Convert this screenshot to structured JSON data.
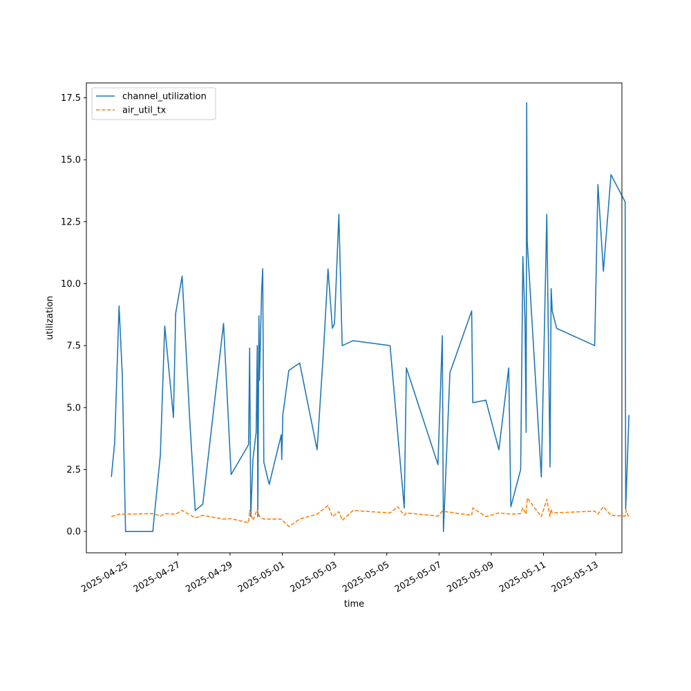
{
  "chart_data": {
    "type": "line",
    "xlabel": "time",
    "ylabel": "utilization",
    "xlim": [
      "2025-04-23T12:00",
      "2025-05-14T00:00"
    ],
    "ylim": [
      -0.86,
      18.1
    ],
    "x_ticks": [
      "2025-04-25",
      "2025-04-27",
      "2025-04-29",
      "2025-05-01",
      "2025-05-03",
      "2025-05-05",
      "2025-05-07",
      "2025-05-09",
      "2025-05-11",
      "2025-05-13"
    ],
    "y_ticks": [
      "0.0",
      "2.5",
      "5.0",
      "7.5",
      "10.0",
      "12.5",
      "15.0",
      "17.5"
    ],
    "y_tick_values": [
      0,
      2.5,
      5,
      7.5,
      10,
      12.5,
      15,
      17.5
    ],
    "grid": false,
    "legend_position": "upper-left",
    "series": [
      {
        "name": "channel_utilization",
        "color": "#1f77b4",
        "style": "solid",
        "points": [
          [
            "2025-04-24T11:00",
            2.2
          ],
          [
            "2025-04-24T14:00",
            3.6
          ],
          [
            "2025-04-24T18:00",
            9.1
          ],
          [
            "2025-04-24T21:00",
            6.3
          ],
          [
            "2025-04-25T00:00",
            0.0
          ],
          [
            "2025-04-26T01:00",
            0.0
          ],
          [
            "2025-04-26T08:00",
            3.1
          ],
          [
            "2025-04-26T12:00",
            8.3
          ],
          [
            "2025-04-26T20:00",
            4.6
          ],
          [
            "2025-04-26T22:00",
            8.8
          ],
          [
            "2025-04-27T04:00",
            10.3
          ],
          [
            "2025-04-27T11:00",
            4.5
          ],
          [
            "2025-04-27T16:00",
            0.85
          ],
          [
            "2025-04-27T23:00",
            1.1
          ],
          [
            "2025-04-28T18:00",
            8.4
          ],
          [
            "2025-04-29T01:00",
            2.3
          ],
          [
            "2025-04-29T17:00",
            3.5
          ],
          [
            "2025-04-29T18:00",
            7.4
          ],
          [
            "2025-04-29T19:00",
            0.6
          ],
          [
            "2025-04-29T21:00",
            2.9
          ],
          [
            "2025-04-30T00:00",
            4.0
          ],
          [
            "2025-04-30T01:00",
            7.5
          ],
          [
            "2025-04-30T01:30",
            0.6
          ],
          [
            "2025-04-30T02:30",
            8.7
          ],
          [
            "2025-04-30T03:00",
            6.1
          ],
          [
            "2025-04-30T05:00",
            9.7
          ],
          [
            "2025-04-30T06:00",
            10.6
          ],
          [
            "2025-04-30T07:00",
            2.8
          ],
          [
            "2025-04-30T12:00",
            1.9
          ],
          [
            "2025-04-30T23:00",
            3.9
          ],
          [
            "2025-04-30T23:30",
            2.9
          ],
          [
            "2025-05-01T00:30",
            4.7
          ],
          [
            "2025-05-01T06:00",
            6.5
          ],
          [
            "2025-05-01T16:00",
            6.8
          ],
          [
            "2025-05-02T08:00",
            3.3
          ],
          [
            "2025-05-02T14:00",
            7.4
          ],
          [
            "2025-05-02T18:00",
            10.6
          ],
          [
            "2025-05-02T22:00",
            8.2
          ],
          [
            "2025-05-03T00:00",
            8.4
          ],
          [
            "2025-05-03T04:00",
            12.8
          ],
          [
            "2025-05-03T07:00",
            7.5
          ],
          [
            "2025-05-03T17:00",
            7.7
          ],
          [
            "2025-05-05T03:00",
            7.5
          ],
          [
            "2025-05-05T16:00",
            0.95
          ],
          [
            "2025-05-05T18:00",
            6.6
          ],
          [
            "2025-05-06T23:00",
            2.7
          ],
          [
            "2025-05-07T03:00",
            7.9
          ],
          [
            "2025-05-07T04:00",
            0.0
          ],
          [
            "2025-05-07T10:00",
            6.4
          ],
          [
            "2025-05-08T06:00",
            8.9
          ],
          [
            "2025-05-08T07:00",
            5.2
          ],
          [
            "2025-05-08T19:00",
            5.3
          ],
          [
            "2025-05-09T07:00",
            3.3
          ],
          [
            "2025-05-09T16:00",
            6.6
          ],
          [
            "2025-05-09T18:00",
            1.0
          ],
          [
            "2025-05-10T03:00",
            2.5
          ],
          [
            "2025-05-10T05:00",
            11.1
          ],
          [
            "2025-05-10T07:00",
            8.5
          ],
          [
            "2025-05-10T08:00",
            4.0
          ],
          [
            "2025-05-10T08:30",
            17.3
          ],
          [
            "2025-05-10T09:00",
            11.7
          ],
          [
            "2025-05-10T22:00",
            2.2
          ],
          [
            "2025-05-11T03:00",
            12.8
          ],
          [
            "2025-05-11T06:00",
            2.6
          ],
          [
            "2025-05-11T07:00",
            9.8
          ],
          [
            "2025-05-11T08:00",
            8.9
          ],
          [
            "2025-05-11T12:00",
            8.2
          ],
          [
            "2025-05-12T23:00",
            7.5
          ],
          [
            "2025-05-13T02:00",
            14.0
          ],
          [
            "2025-05-13T07:00",
            10.5
          ],
          [
            "2025-05-13T14:00",
            14.4
          ],
          [
            "2025-05-14T03:00",
            13.3
          ],
          [
            "2025-05-14T03:30",
            0.9
          ],
          [
            "2025-05-14T06:30",
            4.7
          ]
        ]
      },
      {
        "name": "air_util_tx",
        "color": "#ff7f0e",
        "style": "dashed",
        "points": [
          [
            "2025-04-24T11:00",
            0.6
          ],
          [
            "2025-04-24T18:00",
            0.7
          ],
          [
            "2025-04-25T00:00",
            0.7
          ],
          [
            "2025-04-26T01:00",
            0.72
          ],
          [
            "2025-04-26T08:00",
            0.62
          ],
          [
            "2025-04-26T12:00",
            0.72
          ],
          [
            "2025-04-26T22:00",
            0.7
          ],
          [
            "2025-04-27T04:00",
            0.85
          ],
          [
            "2025-04-27T16:00",
            0.55
          ],
          [
            "2025-04-27T23:00",
            0.65
          ],
          [
            "2025-04-28T18:00",
            0.5
          ],
          [
            "2025-04-29T01:00",
            0.52
          ],
          [
            "2025-04-29T17:00",
            0.35
          ],
          [
            "2025-04-29T18:00",
            0.85
          ],
          [
            "2025-04-29T21:00",
            0.45
          ],
          [
            "2025-04-30T01:00",
            0.9
          ],
          [
            "2025-04-30T03:00",
            0.6
          ],
          [
            "2025-04-30T07:00",
            0.5
          ],
          [
            "2025-04-30T23:00",
            0.5
          ],
          [
            "2025-05-01T06:00",
            0.2
          ],
          [
            "2025-05-01T16:00",
            0.5
          ],
          [
            "2025-05-02T08:00",
            0.7
          ],
          [
            "2025-05-02T18:00",
            1.05
          ],
          [
            "2025-05-02T22:00",
            0.6
          ],
          [
            "2025-05-03T04:00",
            0.8
          ],
          [
            "2025-05-03T07:00",
            0.45
          ],
          [
            "2025-05-03T17:00",
            0.85
          ],
          [
            "2025-05-05T03:00",
            0.75
          ],
          [
            "2025-05-05T10:00",
            1.0
          ],
          [
            "2025-05-05T16:00",
            0.65
          ],
          [
            "2025-05-05T18:00",
            0.75
          ],
          [
            "2025-05-06T23:00",
            0.62
          ],
          [
            "2025-05-07T03:00",
            0.82
          ],
          [
            "2025-05-08T06:00",
            0.65
          ],
          [
            "2025-05-08T07:00",
            0.95
          ],
          [
            "2025-05-08T19:00",
            0.6
          ],
          [
            "2025-05-09T07:00",
            0.75
          ],
          [
            "2025-05-09T18:00",
            0.7
          ],
          [
            "2025-05-10T03:00",
            0.72
          ],
          [
            "2025-05-10T05:00",
            0.95
          ],
          [
            "2025-05-10T08:00",
            0.7
          ],
          [
            "2025-05-10T09:00",
            1.35
          ],
          [
            "2025-05-10T22:00",
            0.6
          ],
          [
            "2025-05-11T03:00",
            1.3
          ],
          [
            "2025-05-11T06:00",
            0.6
          ],
          [
            "2025-05-11T07:00",
            0.9
          ],
          [
            "2025-05-11T08:00",
            0.75
          ],
          [
            "2025-05-12T23:00",
            0.82
          ],
          [
            "2025-05-13T02:00",
            0.7
          ],
          [
            "2025-05-13T07:00",
            1.0
          ],
          [
            "2025-05-13T14:00",
            0.65
          ],
          [
            "2025-05-14T03:00",
            0.62
          ],
          [
            "2025-05-14T04:00",
            0.85
          ],
          [
            "2025-05-14T06:30",
            0.55
          ]
        ]
      }
    ]
  }
}
